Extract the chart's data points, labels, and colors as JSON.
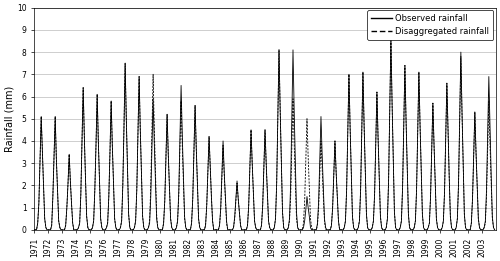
{
  "ylabel": "Rainfall (mm)",
  "ylim": [
    0,
    10
  ],
  "yticks": [
    0,
    1,
    2,
    3,
    4,
    5,
    6,
    7,
    8,
    9,
    10
  ],
  "xlim_start": 1971,
  "xlim_end": 2004,
  "years": [
    1971,
    1972,
    1973,
    1974,
    1975,
    1976,
    1977,
    1978,
    1979,
    1980,
    1981,
    1982,
    1983,
    1984,
    1985,
    1986,
    1987,
    1988,
    1989,
    1990,
    1991,
    1992,
    1993,
    1994,
    1995,
    1996,
    1997,
    1998,
    1999,
    2000,
    2001,
    2002,
    2003
  ],
  "obs_peaks": {
    "1971": 5.1,
    "1972": 5.1,
    "1973": 3.4,
    "1974": 6.4,
    "1975": 6.1,
    "1976": 5.8,
    "1977": 7.5,
    "1978": 6.9,
    "1979": 5.9,
    "1980": 5.2,
    "1981": 6.5,
    "1982": 5.6,
    "1983": 4.2,
    "1984": 4.0,
    "1985": 2.2,
    "1986": 4.5,
    "1987": 4.5,
    "1988": 8.1,
    "1989": 8.1,
    "1990": 1.5,
    "1991": 5.1,
    "1992": 4.0,
    "1993": 7.0,
    "1994": 7.1,
    "1995": 6.2,
    "1996": 8.6,
    "1997": 7.4,
    "1998": 7.1,
    "1999": 5.7,
    "2000": 6.6,
    "2001": 8.0,
    "2002": 5.3,
    "2003": 6.9
  },
  "dis_peaks": {
    "1971": 5.1,
    "1972": 5.1,
    "1973": 3.4,
    "1974": 6.4,
    "1975": 6.1,
    "1976": 5.8,
    "1977": 7.5,
    "1978": 6.9,
    "1979": 7.0,
    "1980": 5.2,
    "1981": 5.8,
    "1982": 5.6,
    "1983": 4.2,
    "1984": 3.8,
    "1985": 2.1,
    "1986": 4.5,
    "1987": 4.5,
    "1988": 8.1,
    "1989": 5.9,
    "1990": 5.0,
    "1991": 4.0,
    "1992": 4.0,
    "1993": 7.0,
    "1994": 7.1,
    "1995": 6.2,
    "1996": 8.6,
    "1997": 7.4,
    "1998": 7.1,
    "1999": 5.7,
    "2000": 6.6,
    "2001": 7.8,
    "2002": 5.3,
    "2003": 5.8
  },
  "obs_monthly": {
    "1971": [
      0.0,
      0.0,
      0.0,
      0.3,
      1.2,
      3.1,
      5.1,
      3.5,
      2.0,
      0.5,
      0.1,
      0.0
    ],
    "1972": [
      0.0,
      0.0,
      0.0,
      0.2,
      1.5,
      3.3,
      5.1,
      3.2,
      1.8,
      0.4,
      0.1,
      0.0
    ],
    "1973": [
      0.0,
      0.0,
      0.0,
      0.2,
      1.0,
      2.1,
      3.4,
      2.2,
      1.2,
      0.3,
      0.0,
      0.0
    ],
    "1974": [
      0.0,
      0.0,
      0.1,
      0.3,
      1.6,
      4.0,
      6.4,
      4.2,
      2.3,
      0.6,
      0.1,
      0.0
    ],
    "1975": [
      0.0,
      0.0,
      0.1,
      0.4,
      1.8,
      3.8,
      6.1,
      4.0,
      2.2,
      0.5,
      0.1,
      0.0
    ],
    "1976": [
      0.0,
      0.0,
      0.1,
      0.3,
      1.5,
      3.5,
      5.8,
      3.8,
      2.1,
      0.5,
      0.1,
      0.0
    ],
    "1977": [
      0.0,
      0.0,
      0.1,
      0.4,
      2.0,
      4.6,
      7.5,
      5.0,
      2.8,
      0.7,
      0.1,
      0.0
    ],
    "1978": [
      0.0,
      0.0,
      0.1,
      0.4,
      1.8,
      4.3,
      6.9,
      4.5,
      2.5,
      0.6,
      0.1,
      0.0
    ],
    "1979": [
      0.0,
      0.0,
      0.1,
      0.3,
      1.5,
      3.7,
      5.9,
      3.9,
      2.2,
      0.5,
      0.1,
      0.0
    ],
    "1980": [
      0.0,
      0.0,
      0.0,
      0.3,
      1.3,
      3.2,
      5.2,
      3.4,
      1.9,
      0.5,
      0.1,
      0.0
    ],
    "1981": [
      0.0,
      0.0,
      0.1,
      0.4,
      1.7,
      4.1,
      6.5,
      4.3,
      2.4,
      0.6,
      0.1,
      0.0
    ],
    "1982": [
      0.0,
      0.0,
      0.0,
      0.3,
      1.4,
      3.5,
      5.6,
      3.7,
      2.1,
      0.5,
      0.1,
      0.0
    ],
    "1983": [
      0.0,
      0.0,
      0.0,
      0.2,
      1.1,
      2.6,
      4.2,
      2.8,
      1.5,
      0.4,
      0.0,
      0.0
    ],
    "1984": [
      0.0,
      0.0,
      0.0,
      0.2,
      1.0,
      2.5,
      4.0,
      2.6,
      1.5,
      0.4,
      0.0,
      0.0
    ],
    "1985": [
      0.0,
      0.0,
      0.0,
      0.1,
      0.6,
      1.4,
      2.2,
      1.4,
      0.8,
      0.2,
      0.0,
      0.0
    ],
    "1986": [
      0.0,
      0.0,
      0.0,
      0.2,
      1.1,
      2.8,
      4.5,
      3.0,
      1.7,
      0.4,
      0.1,
      0.0
    ],
    "1987": [
      0.0,
      0.0,
      0.0,
      0.2,
      1.1,
      2.8,
      4.5,
      3.0,
      1.7,
      0.4,
      0.1,
      0.0
    ],
    "1988": [
      0.0,
      0.0,
      0.1,
      0.5,
      2.1,
      5.1,
      8.1,
      5.4,
      3.0,
      0.8,
      0.1,
      0.0
    ],
    "1989": [
      0.0,
      0.0,
      0.1,
      0.5,
      2.1,
      5.1,
      8.1,
      5.4,
      3.0,
      0.8,
      0.1,
      0.0
    ],
    "1990": [
      0.0,
      0.0,
      0.0,
      0.1,
      0.4,
      0.9,
      1.5,
      1.0,
      0.6,
      0.1,
      0.0,
      0.0
    ],
    "1991": [
      0.0,
      0.0,
      0.0,
      0.3,
      1.3,
      3.2,
      5.1,
      3.4,
      1.9,
      0.5,
      0.1,
      0.0
    ],
    "1992": [
      0.0,
      0.0,
      0.0,
      0.2,
      1.0,
      2.5,
      4.0,
      2.6,
      1.5,
      0.4,
      0.0,
      0.0
    ],
    "1993": [
      0.0,
      0.0,
      0.1,
      0.4,
      1.8,
      4.4,
      7.0,
      4.6,
      2.6,
      0.6,
      0.1,
      0.0
    ],
    "1994": [
      0.0,
      0.0,
      0.1,
      0.4,
      1.8,
      4.4,
      7.1,
      4.7,
      2.6,
      0.7,
      0.1,
      0.0
    ],
    "1995": [
      0.0,
      0.0,
      0.1,
      0.4,
      1.6,
      3.9,
      6.2,
      4.1,
      2.3,
      0.6,
      0.1,
      0.0
    ],
    "1996": [
      0.0,
      0.0,
      0.1,
      0.5,
      2.2,
      5.4,
      8.6,
      5.7,
      3.2,
      0.8,
      0.1,
      0.0
    ],
    "1997": [
      0.0,
      0.0,
      0.1,
      0.4,
      1.9,
      4.6,
      7.4,
      4.9,
      2.7,
      0.7,
      0.1,
      0.0
    ],
    "1998": [
      0.0,
      0.0,
      0.1,
      0.4,
      1.8,
      4.4,
      7.1,
      4.7,
      2.6,
      0.7,
      0.1,
      0.0
    ],
    "1999": [
      0.0,
      0.0,
      0.1,
      0.3,
      1.5,
      3.6,
      5.7,
      3.8,
      2.1,
      0.5,
      0.1,
      0.0
    ],
    "2000": [
      0.0,
      0.0,
      0.1,
      0.4,
      1.7,
      4.1,
      6.6,
      4.4,
      2.4,
      0.6,
      0.1,
      0.0
    ],
    "2001": [
      0.0,
      0.0,
      0.1,
      0.5,
      2.1,
      5.0,
      8.0,
      5.3,
      3.0,
      0.7,
      0.1,
      0.0
    ],
    "2002": [
      0.0,
      0.0,
      0.0,
      0.3,
      1.4,
      3.3,
      5.3,
      3.5,
      2.0,
      0.5,
      0.1,
      0.0
    ],
    "2003": [
      0.0,
      0.0,
      0.1,
      0.4,
      1.8,
      4.3,
      6.9,
      4.6,
      2.5,
      0.6,
      0.1,
      0.0
    ]
  },
  "dis_monthly": {
    "1971": [
      0.0,
      0.0,
      0.0,
      0.3,
      1.2,
      3.1,
      5.1,
      3.5,
      2.0,
      0.5,
      0.1,
      0.0
    ],
    "1972": [
      0.0,
      0.0,
      0.0,
      0.2,
      1.5,
      3.3,
      5.1,
      3.2,
      1.8,
      0.4,
      0.1,
      0.0
    ],
    "1973": [
      0.0,
      0.0,
      0.0,
      0.2,
      1.0,
      2.1,
      3.4,
      2.2,
      1.2,
      0.3,
      0.0,
      0.0
    ],
    "1974": [
      0.0,
      0.0,
      0.1,
      0.3,
      1.6,
      4.0,
      6.4,
      4.2,
      2.3,
      0.6,
      0.1,
      0.0
    ],
    "1975": [
      0.0,
      0.0,
      0.1,
      0.4,
      1.8,
      3.8,
      6.1,
      4.0,
      2.2,
      0.5,
      0.1,
      0.0
    ],
    "1976": [
      0.0,
      0.0,
      0.1,
      0.3,
      1.5,
      3.5,
      5.8,
      3.8,
      2.1,
      0.5,
      0.1,
      0.0
    ],
    "1977": [
      0.0,
      0.0,
      0.1,
      0.4,
      2.0,
      4.6,
      7.5,
      5.0,
      2.8,
      0.7,
      0.1,
      0.0
    ],
    "1978": [
      0.0,
      0.0,
      0.1,
      0.4,
      1.8,
      4.3,
      6.9,
      4.5,
      2.5,
      0.6,
      0.1,
      0.0
    ],
    "1979": [
      0.0,
      0.0,
      0.1,
      0.4,
      2.0,
      4.4,
      7.0,
      4.6,
      2.6,
      0.7,
      0.1,
      0.0
    ],
    "1980": [
      0.0,
      0.0,
      0.0,
      0.3,
      1.3,
      3.2,
      5.2,
      3.4,
      1.9,
      0.5,
      0.1,
      0.0
    ],
    "1981": [
      0.0,
      0.0,
      0.1,
      0.4,
      1.5,
      3.6,
      5.8,
      3.8,
      2.2,
      0.5,
      0.1,
      0.0
    ],
    "1982": [
      0.0,
      0.0,
      0.0,
      0.3,
      1.4,
      3.5,
      5.6,
      3.7,
      2.1,
      0.5,
      0.1,
      0.0
    ],
    "1983": [
      0.0,
      0.0,
      0.0,
      0.2,
      1.1,
      2.6,
      4.2,
      2.8,
      1.5,
      0.4,
      0.0,
      0.0
    ],
    "1984": [
      0.0,
      0.0,
      0.0,
      0.2,
      0.9,
      2.4,
      3.8,
      2.5,
      1.4,
      0.3,
      0.0,
      0.0
    ],
    "1985": [
      0.0,
      0.0,
      0.0,
      0.1,
      0.5,
      1.3,
      2.1,
      1.4,
      0.8,
      0.2,
      0.0,
      0.0
    ],
    "1986": [
      0.0,
      0.0,
      0.0,
      0.2,
      1.1,
      2.8,
      4.5,
      3.0,
      1.7,
      0.4,
      0.1,
      0.0
    ],
    "1987": [
      0.0,
      0.0,
      0.0,
      0.2,
      1.1,
      2.8,
      4.5,
      3.0,
      1.7,
      0.4,
      0.1,
      0.0
    ],
    "1988": [
      0.0,
      0.0,
      0.1,
      0.5,
      2.1,
      5.1,
      8.1,
      5.4,
      3.0,
      0.8,
      0.1,
      0.0
    ],
    "1989": [
      0.0,
      0.0,
      0.1,
      0.4,
      1.5,
      3.7,
      5.9,
      3.9,
      2.2,
      0.5,
      0.1,
      0.0
    ],
    "1990": [
      0.0,
      0.0,
      0.0,
      0.3,
      1.3,
      3.1,
      5.0,
      3.3,
      1.9,
      0.5,
      0.1,
      0.0
    ],
    "1991": [
      0.0,
      0.0,
      0.0,
      0.2,
      1.0,
      2.5,
      4.0,
      2.7,
      1.5,
      0.4,
      0.0,
      0.0
    ],
    "1992": [
      0.0,
      0.0,
      0.0,
      0.2,
      1.0,
      2.5,
      4.0,
      2.6,
      1.5,
      0.4,
      0.0,
      0.0
    ],
    "1993": [
      0.0,
      0.0,
      0.1,
      0.4,
      1.8,
      4.4,
      7.0,
      4.6,
      2.6,
      0.6,
      0.1,
      0.0
    ],
    "1994": [
      0.0,
      0.0,
      0.1,
      0.4,
      1.8,
      4.4,
      7.1,
      4.7,
      2.6,
      0.7,
      0.1,
      0.0
    ],
    "1995": [
      0.0,
      0.0,
      0.1,
      0.4,
      1.6,
      3.9,
      6.2,
      4.1,
      2.3,
      0.6,
      0.1,
      0.0
    ],
    "1996": [
      0.0,
      0.0,
      0.1,
      0.5,
      2.2,
      5.4,
      8.6,
      5.7,
      3.2,
      0.8,
      0.1,
      0.0
    ],
    "1997": [
      0.0,
      0.0,
      0.1,
      0.4,
      1.9,
      4.6,
      7.4,
      4.9,
      2.7,
      0.7,
      0.1,
      0.0
    ],
    "1998": [
      0.0,
      0.0,
      0.1,
      0.4,
      1.8,
      4.4,
      7.1,
      4.7,
      2.6,
      0.7,
      0.1,
      0.0
    ],
    "1999": [
      0.0,
      0.0,
      0.1,
      0.3,
      1.5,
      3.6,
      5.7,
      3.8,
      2.1,
      0.5,
      0.1,
      0.0
    ],
    "2000": [
      0.0,
      0.0,
      0.1,
      0.4,
      1.7,
      4.1,
      6.6,
      4.4,
      2.4,
      0.6,
      0.1,
      0.0
    ],
    "2001": [
      0.0,
      0.0,
      0.1,
      0.5,
      2.0,
      4.9,
      7.8,
      5.2,
      2.9,
      0.7,
      0.1,
      0.0
    ],
    "2002": [
      0.0,
      0.0,
      0.0,
      0.3,
      1.4,
      3.3,
      5.3,
      3.5,
      2.0,
      0.5,
      0.1,
      0.0
    ],
    "2003": [
      0.0,
      0.0,
      0.1,
      0.3,
      1.5,
      3.6,
      5.8,
      3.8,
      2.2,
      0.5,
      0.1,
      0.0
    ]
  },
  "legend_observed": "Observed rainfall",
  "legend_disaggregated": "Disaggregated rainfall",
  "line_color": "#000000",
  "bg_color": "#ffffff",
  "grid_color": "#bbbbbb",
  "ylabel_fontsize": 7,
  "tick_fontsize": 5.5,
  "legend_fontsize": 6
}
